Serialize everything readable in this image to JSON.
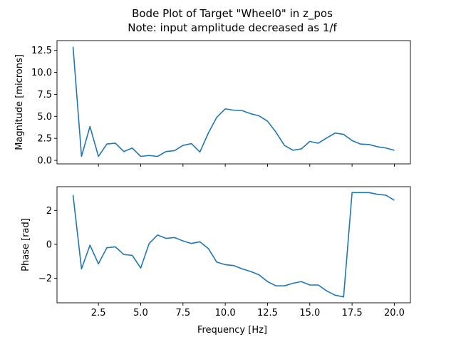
{
  "title_line1": "Bode Plot of Target \"Wheel0\" in z_pos",
  "title_line2": "Note: input amplitude decreased as 1/f",
  "xlabel": "Frequency [Hz]",
  "chart_data": [
    {
      "type": "line",
      "ylabel": "Magnitude [microns]",
      "xlim": [
        0.05,
        20.95
      ],
      "ylim": [
        -0.4,
        13.6
      ],
      "xticks": [
        2.5,
        5.0,
        7.5,
        10.0,
        12.5,
        15.0,
        17.5,
        20.0
      ],
      "xtick_labels": [
        "2.5",
        "5.0",
        "7.5",
        "10.0",
        "12.5",
        "15.0",
        "17.5",
        "20.0"
      ],
      "xtick_labels_visible": false,
      "yticks": [
        0.0,
        2.5,
        5.0,
        7.5,
        10.0,
        12.5
      ],
      "ytick_labels": [
        "0.0",
        "2.5",
        "5.0",
        "7.5",
        "10.0",
        "12.5"
      ],
      "grid": false,
      "color": "#1f77b4",
      "x": [
        1.0,
        1.5,
        2.0,
        2.5,
        3.0,
        3.5,
        4.0,
        4.5,
        5.0,
        5.5,
        6.0,
        6.5,
        7.0,
        7.5,
        8.0,
        8.5,
        9.0,
        9.5,
        10.0,
        10.5,
        11.0,
        11.5,
        12.0,
        12.5,
        13.0,
        13.5,
        14.0,
        14.5,
        15.0,
        15.5,
        16.0,
        16.5,
        17.0,
        17.5,
        18.0,
        18.5,
        19.0,
        19.5,
        20.0
      ],
      "y": [
        12.9,
        0.45,
        3.85,
        0.45,
        1.85,
        1.95,
        1.0,
        1.4,
        0.45,
        0.55,
        0.45,
        1.0,
        1.1,
        1.7,
        1.9,
        0.95,
        3.1,
        4.9,
        5.85,
        5.7,
        5.65,
        5.3,
        5.05,
        4.45,
        3.2,
        1.7,
        1.15,
        1.3,
        2.15,
        1.95,
        2.55,
        3.1,
        2.95,
        2.25,
        1.85,
        1.8,
        1.55,
        1.4,
        1.15
      ]
    },
    {
      "type": "line",
      "ylabel": "Phase [rad]",
      "xlim": [
        0.05,
        20.95
      ],
      "ylim": [
        -3.45,
        3.4
      ],
      "xticks": [
        2.5,
        5.0,
        7.5,
        10.0,
        12.5,
        15.0,
        17.5,
        20.0
      ],
      "xtick_labels": [
        "2.5",
        "5.0",
        "7.5",
        "10.0",
        "12.5",
        "15.0",
        "17.5",
        "20.0"
      ],
      "xtick_labels_visible": true,
      "yticks": [
        -2,
        0,
        2
      ],
      "ytick_labels": [
        "−2",
        "0",
        "2"
      ],
      "grid": false,
      "color": "#1f77b4",
      "x": [
        1.0,
        1.5,
        2.0,
        2.5,
        3.0,
        3.5,
        4.0,
        4.5,
        5.0,
        5.5,
        6.0,
        6.5,
        7.0,
        7.5,
        8.0,
        8.5,
        9.0,
        9.5,
        10.0,
        10.5,
        11.0,
        11.5,
        12.0,
        12.5,
        13.0,
        13.5,
        14.0,
        14.5,
        15.0,
        15.5,
        16.0,
        16.5,
        17.0,
        17.5,
        18.0,
        18.5,
        19.0,
        19.5,
        20.0
      ],
      "y": [
        2.9,
        -1.45,
        -0.05,
        -1.15,
        -0.2,
        -0.15,
        -0.6,
        -0.65,
        -1.4,
        0.05,
        0.55,
        0.35,
        0.4,
        0.2,
        0.05,
        0.15,
        -0.25,
        -1.05,
        -1.2,
        -1.25,
        -1.45,
        -1.6,
        -1.8,
        -2.2,
        -2.45,
        -2.45,
        -2.3,
        -2.2,
        -2.4,
        -2.4,
        -2.75,
        -3.0,
        -3.1,
        3.05,
        3.05,
        3.05,
        2.95,
        2.9,
        2.6
      ]
    }
  ]
}
